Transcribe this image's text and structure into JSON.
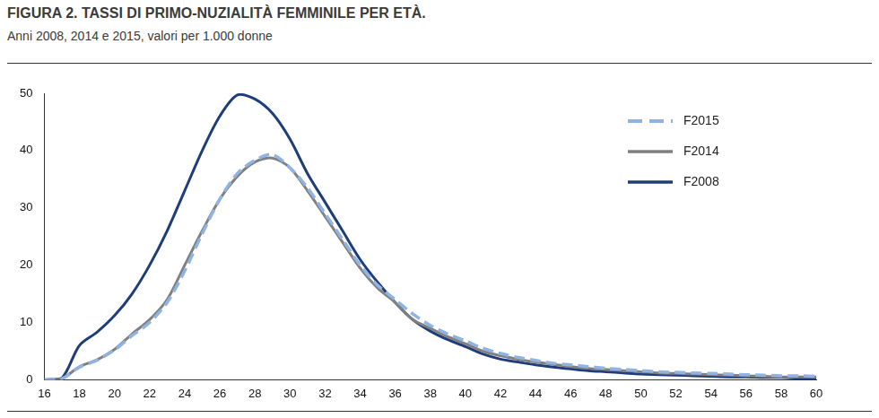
{
  "chart_data": {
    "type": "line",
    "title": "FIGURA 2. TASSI DI PRIMO-NUZIALITÀ FEMMINILE PER ETÀ.",
    "subtitle": "Anni 2008, 2014 e 2015, valori per 1.000 donne",
    "x": [
      16,
      17,
      18,
      19,
      20,
      21,
      22,
      23,
      24,
      25,
      26,
      27,
      28,
      29,
      30,
      31,
      32,
      33,
      34,
      35,
      36,
      37,
      38,
      39,
      40,
      41,
      42,
      43,
      44,
      45,
      46,
      47,
      48,
      49,
      50,
      51,
      52,
      53,
      54,
      55,
      56,
      57,
      58,
      59,
      60
    ],
    "series": [
      {
        "name": "F2015",
        "color": "#8fb4e3",
        "line_style": "dashed",
        "values": [
          0,
          0.2,
          2.2,
          3.4,
          5.2,
          7.7,
          10,
          13.5,
          19,
          25.5,
          31.5,
          36,
          38.3,
          39.3,
          37,
          33.5,
          29,
          24.5,
          20,
          16.5,
          14,
          11.5,
          9.5,
          8,
          6.8,
          5.5,
          4.6,
          3.9,
          3.4,
          2.9,
          2.6,
          2.3,
          2.0,
          1.8,
          1.6,
          1.4,
          1.3,
          1.2,
          1.1,
          1.0,
          0.9,
          0.8,
          0.7,
          0.7,
          0.6
        ]
      },
      {
        "name": "F2014",
        "color": "#808080",
        "line_style": "solid",
        "values": [
          0,
          0.2,
          2.3,
          3.5,
          5.3,
          8,
          10.5,
          14,
          20,
          26,
          31.5,
          35.5,
          38,
          38.7,
          37,
          33,
          28.5,
          24,
          19.5,
          16,
          13.5,
          10.5,
          9,
          7.5,
          6.3,
          5,
          4.2,
          3.6,
          3.1,
          2.7,
          2.3,
          2,
          1.8,
          1.6,
          1.4,
          1.2,
          1.1,
          1.0,
          0.9,
          0.8,
          0.7,
          0.6,
          0.5,
          0.5,
          0.5
        ]
      },
      {
        "name": "F2008",
        "color": "#1f3d7a",
        "line_style": "solid",
        "values": [
          0,
          0.3,
          6,
          8.3,
          11.2,
          15,
          20,
          26,
          33,
          40,
          46,
          49.7,
          49,
          46.5,
          42,
          36,
          31,
          26,
          21,
          17,
          13.5,
          10.5,
          8.5,
          7,
          5.8,
          4.5,
          3.6,
          3.1,
          2.6,
          2.2,
          1.9,
          1.6,
          1.4,
          1.2,
          1.0,
          0.9,
          0.8,
          0.7,
          0.6,
          0.5,
          0.5,
          0.4,
          0.4,
          0.3,
          0.3
        ]
      }
    ],
    "xlim": [
      16,
      60
    ],
    "xticks": [
      16,
      18,
      20,
      22,
      24,
      26,
      28,
      30,
      32,
      34,
      36,
      38,
      40,
      42,
      44,
      46,
      48,
      50,
      52,
      54,
      56,
      58,
      60
    ],
    "ylim": [
      0,
      50
    ],
    "yticks": [
      0,
      10,
      20,
      30,
      40,
      50
    ],
    "grid": false,
    "legend": "upper right"
  }
}
